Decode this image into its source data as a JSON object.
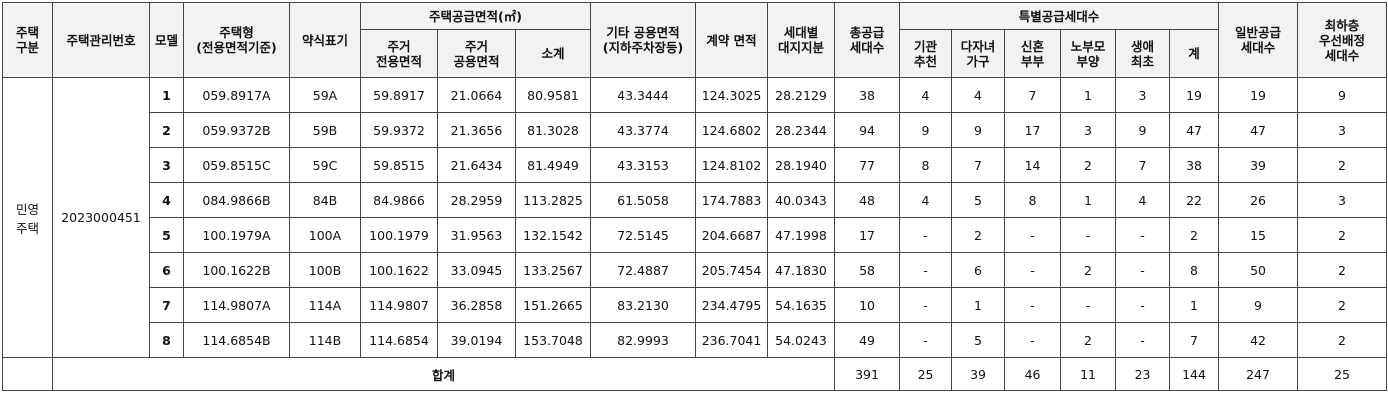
{
  "headers": {
    "type_group": "주택\n구분",
    "mgmt_no": "주택관리번호",
    "model": "모델",
    "house_type": "주택형\n(전용면적기준)",
    "abbrev": "약식표기",
    "supply_area_group": "주택공급면적(㎡)",
    "exclusive_area": "주거\n전용면적",
    "common_area": "주거\n공용면적",
    "subtotal": "소계",
    "other_common": "기타 공용면적\n(지하주차장등)",
    "contract_area": "계약 면적",
    "land_share": "세대별\n대지지분",
    "total_units": "총공급\n세대수",
    "special_group": "특별공급세대수",
    "agency": "기관\n추천",
    "multi_child": "다자녀\n가구",
    "newlywed": "신혼\n부부",
    "elderly_parent": "노부모\n부양",
    "first_home": "생애\n최초",
    "special_sum": "계",
    "general_units": "일반공급\n세대수",
    "lowest_floor": "최하층\n우선배정\n세대수"
  },
  "type_name": "민영\n주택",
  "mgmt_number": "2023000451",
  "rows": [
    {
      "model": "1",
      "house_type": "059.8917A",
      "abbrev": "59A",
      "exclusive": "59.8917",
      "common": "21.0664",
      "subtotal": "80.9581",
      "other_common": "43.3444",
      "contract": "124.3025",
      "land": "28.2129",
      "total": "38",
      "agency": "4",
      "multi_child": "4",
      "newlywed": "7",
      "elderly": "1",
      "first_home": "3",
      "special_sum": "19",
      "general": "19",
      "lowest": "9"
    },
    {
      "model": "2",
      "house_type": "059.9372B",
      "abbrev": "59B",
      "exclusive": "59.9372",
      "common": "21.3656",
      "subtotal": "81.3028",
      "other_common": "43.3774",
      "contract": "124.6802",
      "land": "28.2344",
      "total": "94",
      "agency": "9",
      "multi_child": "9",
      "newlywed": "17",
      "elderly": "3",
      "first_home": "9",
      "special_sum": "47",
      "general": "47",
      "lowest": "3"
    },
    {
      "model": "3",
      "house_type": "059.8515C",
      "abbrev": "59C",
      "exclusive": "59.8515",
      "common": "21.6434",
      "subtotal": "81.4949",
      "other_common": "43.3153",
      "contract": "124.8102",
      "land": "28.1940",
      "total": "77",
      "agency": "8",
      "multi_child": "7",
      "newlywed": "14",
      "elderly": "2",
      "first_home": "7",
      "special_sum": "38",
      "general": "39",
      "lowest": "2"
    },
    {
      "model": "4",
      "house_type": "084.9866B",
      "abbrev": "84B",
      "exclusive": "84.9866",
      "common": "28.2959",
      "subtotal": "113.2825",
      "other_common": "61.5058",
      "contract": "174.7883",
      "land": "40.0343",
      "total": "48",
      "agency": "4",
      "multi_child": "5",
      "newlywed": "8",
      "elderly": "1",
      "first_home": "4",
      "special_sum": "22",
      "general": "26",
      "lowest": "3"
    },
    {
      "model": "5",
      "house_type": "100.1979A",
      "abbrev": "100A",
      "exclusive": "100.1979",
      "common": "31.9563",
      "subtotal": "132.1542",
      "other_common": "72.5145",
      "contract": "204.6687",
      "land": "47.1998",
      "total": "17",
      "agency": "-",
      "multi_child": "2",
      "newlywed": "-",
      "elderly": "-",
      "first_home": "-",
      "special_sum": "2",
      "general": "15",
      "lowest": "2"
    },
    {
      "model": "6",
      "house_type": "100.1622B",
      "abbrev": "100B",
      "exclusive": "100.1622",
      "common": "33.0945",
      "subtotal": "133.2567",
      "other_common": "72.4887",
      "contract": "205.7454",
      "land": "47.1830",
      "total": "58",
      "agency": "-",
      "multi_child": "6",
      "newlywed": "-",
      "elderly": "2",
      "first_home": "-",
      "special_sum": "8",
      "general": "50",
      "lowest": "2"
    },
    {
      "model": "7",
      "house_type": "114.9807A",
      "abbrev": "114A",
      "exclusive": "114.9807",
      "common": "36.2858",
      "subtotal": "151.2665",
      "other_common": "83.2130",
      "contract": "234.4795",
      "land": "54.1635",
      "total": "10",
      "agency": "-",
      "multi_child": "1",
      "newlywed": "-",
      "elderly": "-",
      "first_home": "-",
      "special_sum": "1",
      "general": "9",
      "lowest": "2"
    },
    {
      "model": "8",
      "house_type": "114.6854B",
      "abbrev": "114B",
      "exclusive": "114.6854",
      "common": "39.0194",
      "subtotal": "153.7048",
      "other_common": "82.9993",
      "contract": "236.7041",
      "land": "54.0243",
      "total": "49",
      "agency": "-",
      "multi_child": "5",
      "newlywed": "-",
      "elderly": "2",
      "first_home": "-",
      "special_sum": "7",
      "general": "42",
      "lowest": "2"
    }
  ],
  "totals": {
    "label": "합계",
    "total": "391",
    "agency": "25",
    "multi_child": "39",
    "newlywed": "46",
    "elderly": "11",
    "first_home": "23",
    "special_sum": "144",
    "general": "247",
    "lowest": "25"
  }
}
